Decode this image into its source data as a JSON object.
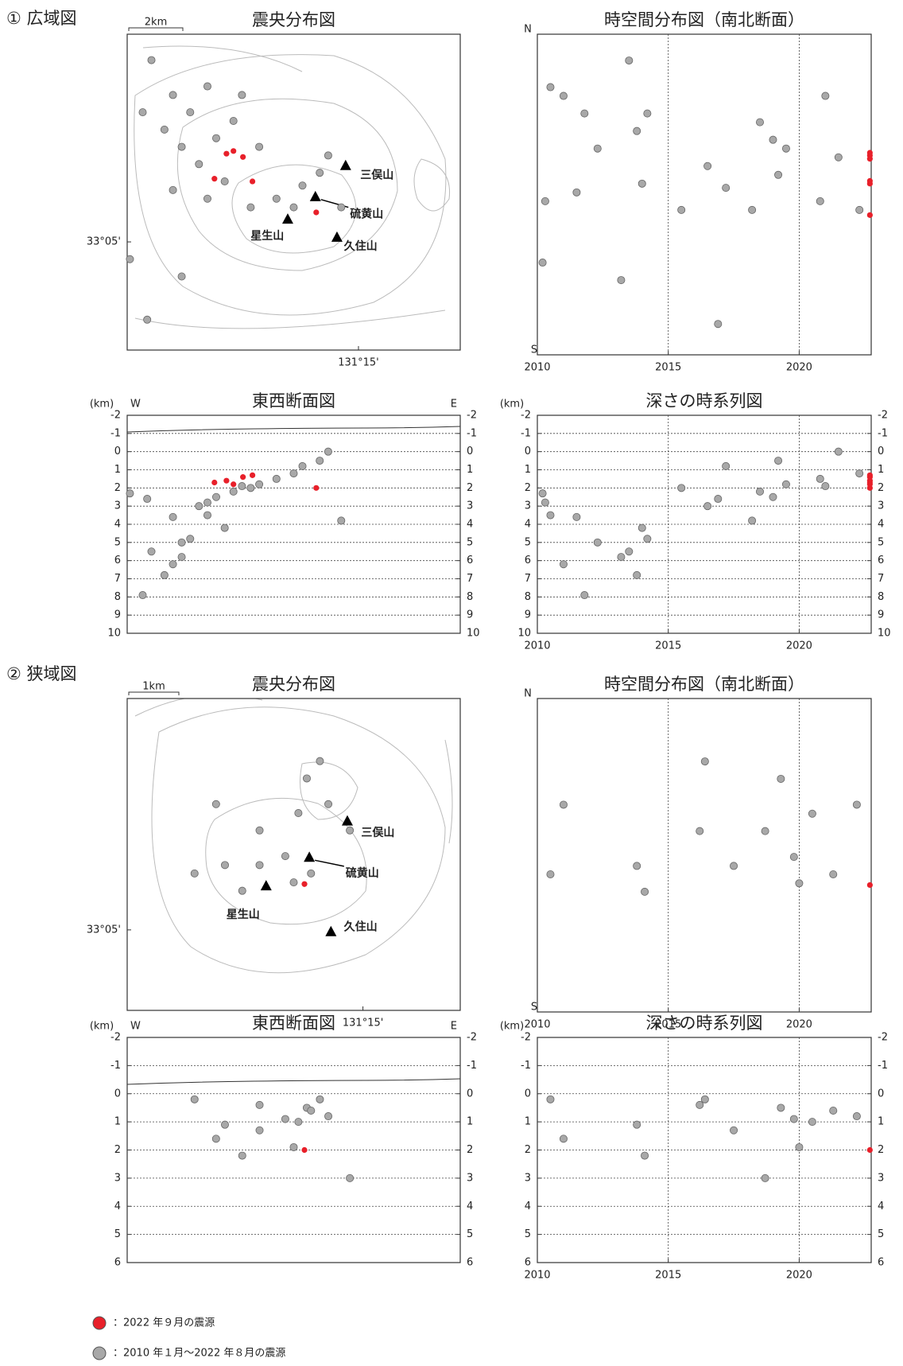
{
  "sections": [
    "① 広域図",
    "② 狭域図"
  ],
  "legend": [
    {
      "label": "：2022 年９月の震源",
      "color": "#e8202a"
    },
    {
      "label": "：2010 年１月～2022 年８月の震源",
      "color": "#a8a8a8"
    }
  ],
  "chart_data": [
    {
      "type": "map",
      "title": "震央分布図",
      "scale_label": "2km",
      "xlim": [
        131.1575,
        131.2907
      ],
      "ylim": [
        33.047,
        33.153
      ],
      "xticks": [
        {
          "value": 131.25,
          "label": "131°15'"
        }
      ],
      "yticks": [
        {
          "value": 33.0833,
          "label": "33°05'"
        }
      ],
      "annotations": [
        "三俣山",
        "硫黄山",
        "星生山",
        "久住山"
      ],
      "series": [
        {
          "color": "#a8a8a8",
          "x": [
            131.1672,
            131.1758,
            131.1827,
            131.1896,
            131.1724,
            131.1793,
            131.1862,
            131.1931,
            131.2,
            131.1965,
            131.1896,
            131.1758,
            131.1637,
            131.2103,
            131.2172,
            131.2276,
            131.2379,
            131.2345,
            131.2241,
            131.2069,
            131.1586,
            131.1793,
            131.1655,
            131.2034,
            131.2431
          ],
          "values": [
            33.1443,
            33.1326,
            33.1268,
            33.1355,
            33.121,
            33.1152,
            33.1094,
            33.1181,
            33.1239,
            33.1036,
            33.0978,
            33.1007,
            33.1268,
            33.1152,
            33.0978,
            33.1022,
            33.1123,
            33.1065,
            33.0949,
            33.0949,
            33.0775,
            33.0717,
            33.0572,
            33.1326,
            33.0949
          ]
        },
        {
          "color": "#e8202a",
          "x": [
            131.1972,
            131.2,
            131.2038,
            131.2076,
            131.1924,
            131.2331
          ],
          "values": [
            33.1129,
            33.1138,
            33.1118,
            33.1036,
            33.1045,
            33.0932
          ]
        }
      ]
    },
    {
      "type": "scatter",
      "title": "時空間分布図（南北断面）",
      "top_label": "N",
      "bottom_label": "S",
      "xlim": [
        2010,
        2022.75
      ],
      "ylim": [
        33.047,
        33.153
      ],
      "xticks": [
        2010,
        2015,
        2020
      ],
      "grid": "x",
      "series": [
        {
          "color": "#a8a8a8",
          "x": [
            2013.5,
            2011.0,
            2014.2,
            2010.5,
            2013.8,
            2012.3,
            2016.5,
            2019.0,
            2018.5,
            2014.0,
            2010.3,
            2011.5,
            2011.8,
            2019.5,
            2020.8,
            2017.2,
            2021.5,
            2019.2,
            2022.3,
            2015.5,
            2010.2,
            2013.2,
            2016.9,
            2021.0,
            2018.2
          ],
          "values": [
            33.1443,
            33.1326,
            33.1268,
            33.1355,
            33.121,
            33.1152,
            33.1094,
            33.1181,
            33.1239,
            33.1036,
            33.0978,
            33.1007,
            33.1268,
            33.1152,
            33.0978,
            33.1022,
            33.1123,
            33.1065,
            33.0949,
            33.0949,
            33.0775,
            33.0717,
            33.0572,
            33.1326,
            33.0949
          ]
        },
        {
          "color": "#e8202a",
          "x": [
            2022.7,
            2022.7,
            2022.7,
            2022.7,
            2022.7,
            2022.7
          ],
          "values": [
            33.1129,
            33.1138,
            33.1118,
            33.1036,
            33.1045,
            33.0932
          ]
        }
      ]
    },
    {
      "type": "scatter",
      "title": "東西断面図",
      "unit_label": "(km)",
      "left_label": "W",
      "right_label": "E",
      "xlim": [
        131.1575,
        131.2907
      ],
      "ylim": [
        10,
        -2
      ],
      "yticks": [
        -2,
        -1,
        0,
        1,
        2,
        3,
        4,
        5,
        6,
        7,
        8,
        9,
        10
      ],
      "grid": "y",
      "mirror_yticks": true,
      "series": [
        {
          "color": "#a8a8a8",
          "x": [
            131.1672,
            131.1758,
            131.1827,
            131.1896,
            131.1724,
            131.1793,
            131.1862,
            131.1931,
            131.2,
            131.1965,
            131.1896,
            131.1758,
            131.1637,
            131.2103,
            131.2172,
            131.2276,
            131.2379,
            131.2345,
            131.2241,
            131.2069,
            131.1586,
            131.1793,
            131.1655,
            131.2034,
            131.2431
          ],
          "values": [
            5.5,
            6.2,
            4.8,
            3.5,
            6.8,
            5.0,
            3.0,
            2.5,
            2.2,
            4.2,
            2.8,
            3.6,
            7.9,
            1.8,
            1.5,
            0.8,
            0.0,
            0.5,
            1.2,
            2.0,
            2.3,
            5.8,
            2.6,
            1.9,
            3.8
          ]
        },
        {
          "color": "#e8202a",
          "x": [
            131.1972,
            131.2,
            131.2038,
            131.2076,
            131.1924,
            131.2331
          ],
          "values": [
            1.6,
            1.8,
            1.4,
            1.3,
            1.7,
            2.0
          ]
        }
      ]
    },
    {
      "type": "scatter",
      "title": "深さの時系列図",
      "unit_label": "(km)",
      "xlim": [
        2010,
        2022.75
      ],
      "ylim": [
        10,
        -2
      ],
      "xticks": [
        2010,
        2015,
        2020
      ],
      "yticks": [
        -2,
        -1,
        0,
        1,
        2,
        3,
        4,
        5,
        6,
        7,
        8,
        9,
        10
      ],
      "grid": "xy",
      "mirror_yticks": true,
      "series": [
        {
          "color": "#a8a8a8",
          "x": [
            2013.5,
            2011.0,
            2014.2,
            2010.5,
            2013.8,
            2012.3,
            2016.5,
            2019.0,
            2018.5,
            2014.0,
            2010.3,
            2011.5,
            2011.8,
            2019.5,
            2020.8,
            2017.2,
            2021.5,
            2019.2,
            2022.3,
            2015.5,
            2010.2,
            2013.2,
            2016.9,
            2021.0,
            2018.2
          ],
          "values": [
            5.5,
            6.2,
            4.8,
            3.5,
            6.8,
            5.0,
            3.0,
            2.5,
            2.2,
            4.2,
            2.8,
            3.6,
            7.9,
            1.8,
            1.5,
            0.8,
            0.0,
            0.5,
            1.2,
            2.0,
            2.3,
            5.8,
            2.6,
            1.9,
            3.8
          ]
        },
        {
          "color": "#e8202a",
          "x": [
            2022.7,
            2022.7,
            2022.7,
            2022.7,
            2022.7,
            2022.7
          ],
          "values": [
            1.6,
            1.8,
            1.4,
            1.3,
            1.7,
            2.0
          ]
        }
      ]
    },
    {
      "type": "map",
      "title": "震央分布図",
      "scale_label": "1km",
      "xlim": [
        131.1996,
        131.2708
      ],
      "ylim": [
        33.0689,
        33.1247
      ],
      "xticks": [
        {
          "value": 131.25,
          "label": "131°15'"
        }
      ],
      "yticks": [
        {
          "value": 33.0833,
          "label": "33°05'"
        }
      ],
      "annotations": [
        "三俣山",
        "硫黄山",
        "星生山",
        "久住山"
      ],
      "series": [
        {
          "color": "#a8a8a8",
          "x": [
            131.238,
            131.2408,
            131.2362,
            131.2426,
            131.2279,
            131.2334,
            131.2205,
            131.2186,
            131.2242,
            131.214,
            131.2389,
            131.2472,
            131.2279,
            131.2352
          ],
          "values": [
            33.1104,
            33.1135,
            33.1042,
            33.1058,
            33.0949,
            33.0965,
            33.0949,
            33.1058,
            33.0903,
            33.0934,
            33.0934,
            33.1011,
            33.1011,
            33.0918
          ]
        },
        {
          "color": "#e8202a",
          "x": [
            131.2375
          ],
          "values": [
            33.0915
          ]
        }
      ]
    },
    {
      "type": "scatter",
      "title": "時空間分布図（南北断面）",
      "top_label": "N",
      "bottom_label": "S",
      "xlim": [
        2010,
        2022.75
      ],
      "ylim": [
        33.0689,
        33.1247
      ],
      "xticks": [
        2010,
        2015,
        2020
      ],
      "grid": "x",
      "series": [
        {
          "color": "#a8a8a8",
          "x": [
            2019.3,
            2016.4,
            2020.5,
            2022.2,
            2017.5,
            2019.8,
            2013.8,
            2011.0,
            2014.1,
            2010.5,
            2021.3,
            2018.7,
            2016.2,
            2020.0
          ],
          "values": [
            33.1104,
            33.1135,
            33.1042,
            33.1058,
            33.0949,
            33.0965,
            33.0949,
            33.1058,
            33.0903,
            33.0934,
            33.0934,
            33.1011,
            33.1011,
            33.0918
          ]
        },
        {
          "color": "#e8202a",
          "x": [
            2022.7
          ],
          "values": [
            33.0915
          ]
        }
      ]
    },
    {
      "type": "scatter",
      "title": "東西断面図",
      "unit_label": "(km)",
      "left_label": "W",
      "right_label": "E",
      "xlim": [
        131.1996,
        131.2708
      ],
      "ylim": [
        6,
        -2
      ],
      "yticks": [
        -2,
        -1,
        0,
        1,
        2,
        3,
        4,
        5,
        6
      ],
      "grid": "y",
      "mirror_yticks": true,
      "series": [
        {
          "color": "#a8a8a8",
          "x": [
            131.238,
            131.2408,
            131.2362,
            131.2426,
            131.2279,
            131.2334,
            131.2205,
            131.2186,
            131.2242,
            131.214,
            131.2389,
            131.2472,
            131.2279,
            131.2352
          ],
          "values": [
            0.5,
            0.2,
            1.0,
            0.8,
            1.3,
            0.9,
            1.1,
            1.6,
            2.2,
            0.2,
            0.6,
            3.0,
            0.4,
            1.9
          ]
        },
        {
          "color": "#e8202a",
          "x": [
            131.2375
          ],
          "values": [
            2.0
          ]
        }
      ]
    },
    {
      "type": "scatter",
      "title": "深さの時系列図",
      "unit_label": "(km)",
      "xlim": [
        2010,
        2022.75
      ],
      "ylim": [
        6,
        -2
      ],
      "xticks": [
        2010,
        2015,
        2020
      ],
      "yticks": [
        -2,
        -1,
        0,
        1,
        2,
        3,
        4,
        5,
        6
      ],
      "grid": "xy",
      "mirror_yticks": true,
      "series": [
        {
          "color": "#a8a8a8",
          "x": [
            2019.3,
            2016.4,
            2020.5,
            2022.2,
            2017.5,
            2019.8,
            2013.8,
            2011.0,
            2014.1,
            2010.5,
            2021.3,
            2018.7,
            2016.2,
            2020.0
          ],
          "values": [
            0.5,
            0.2,
            1.0,
            0.8,
            1.3,
            0.9,
            1.1,
            1.6,
            2.2,
            0.2,
            0.6,
            3.0,
            0.4,
            1.9
          ]
        },
        {
          "color": "#e8202a",
          "x": [
            2022.7
          ],
          "values": [
            2.0
          ]
        }
      ]
    }
  ]
}
